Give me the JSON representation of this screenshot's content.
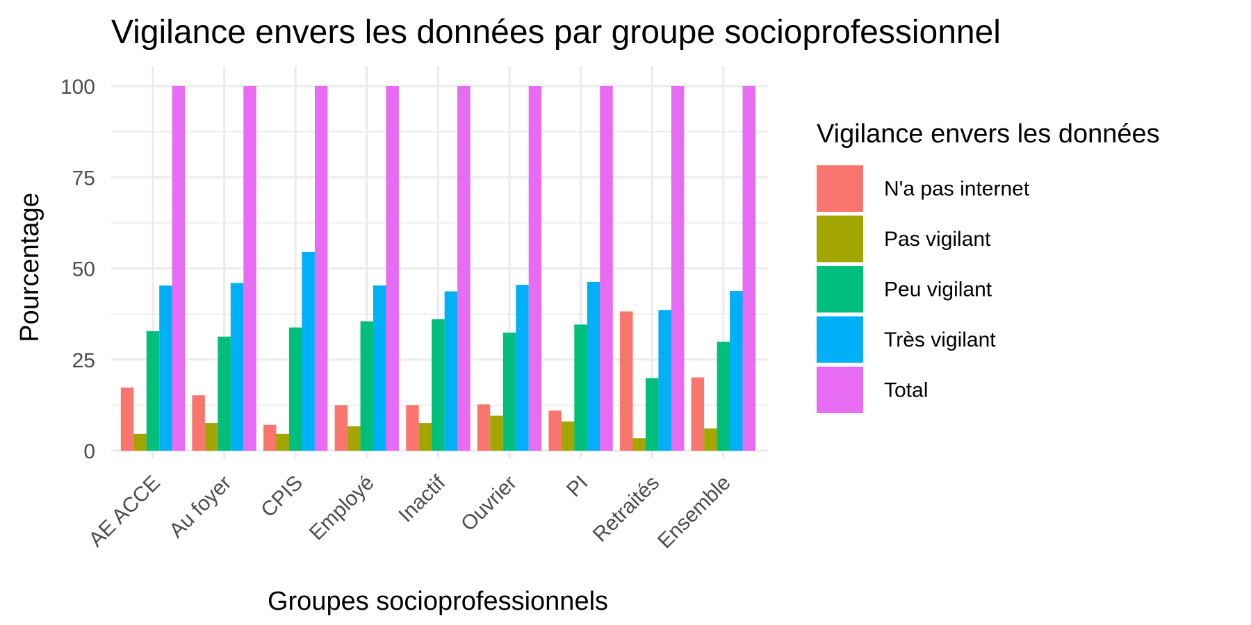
{
  "chart_data": {
    "type": "bar",
    "title": "Vigilance envers les données par groupe socioprofessionnel",
    "xlabel": "Groupes socioprofessionnels",
    "ylabel": "Pourcentage",
    "ylim": [
      0,
      100
    ],
    "yticks": [
      0,
      25,
      50,
      75,
      100
    ],
    "grid": true,
    "legend_position": "right",
    "legend_title": "Vigilance envers les données",
    "categories": [
      "AE ACCE",
      "Au foyer",
      "CPIS",
      "Employé",
      "Inactif",
      "Ouvrier",
      "PI",
      "Retraités",
      "Ensemble"
    ],
    "series": [
      {
        "name": "N'a pas internet",
        "color": "#F8766D",
        "values": [
          17.3,
          15.2,
          7.1,
          12.5,
          12.5,
          12.7,
          11.0,
          38.2,
          20.1
        ]
      },
      {
        "name": "Pas vigilant",
        "color": "#A3A500",
        "values": [
          4.6,
          7.6,
          4.6,
          6.7,
          7.6,
          9.6,
          8.0,
          3.4,
          6.1
        ]
      },
      {
        "name": "Peu vigilant",
        "color": "#00BF7D",
        "values": [
          32.8,
          31.3,
          33.8,
          35.5,
          36.1,
          32.4,
          34.6,
          19.9,
          29.9
        ]
      },
      {
        "name": "Très vigilant",
        "color": "#00B0F6",
        "values": [
          45.3,
          46.0,
          54.5,
          45.3,
          43.7,
          45.5,
          46.3,
          38.6,
          43.8
        ]
      },
      {
        "name": "Total",
        "color": "#E76BF3",
        "values": [
          100,
          100,
          100,
          100,
          100,
          100,
          100,
          100,
          100
        ]
      }
    ]
  }
}
